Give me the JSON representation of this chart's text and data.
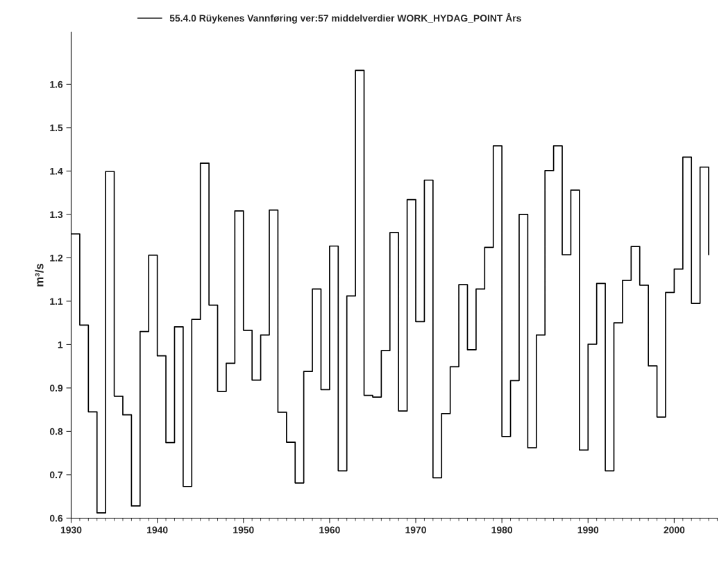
{
  "chart_data": {
    "type": "step",
    "ylabel": "m³/s",
    "legend": "top",
    "x": [
      1930,
      1931,
      1932,
      1933,
      1934,
      1935,
      1936,
      1937,
      1938,
      1939,
      1940,
      1941,
      1942,
      1943,
      1944,
      1945,
      1946,
      1947,
      1948,
      1949,
      1950,
      1951,
      1952,
      1953,
      1954,
      1955,
      1956,
      1957,
      1958,
      1959,
      1960,
      1961,
      1962,
      1963,
      1964,
      1965,
      1966,
      1967,
      1968,
      1969,
      1970,
      1971,
      1972,
      1973,
      1974,
      1975,
      1976,
      1977,
      1978,
      1979,
      1980,
      1981,
      1982,
      1983,
      1984,
      1985,
      1986,
      1987,
      1988,
      1989,
      1990,
      1991,
      1992,
      1993,
      1994,
      1995,
      1996,
      1997,
      1998,
      1999,
      2000,
      2001,
      2002,
      2003,
      2004
    ],
    "series": [
      {
        "name": "55.4.0 Rüykenes Vannføring ver:57 middelverdier WORK_HYDAG_POINT Års",
        "color": "#000000",
        "values": [
          1.255,
          1.045,
          0.845,
          0.612,
          1.399,
          0.881,
          0.838,
          0.628,
          1.03,
          1.206,
          0.974,
          0.774,
          1.041,
          0.673,
          1.058,
          1.418,
          1.091,
          0.892,
          0.957,
          1.308,
          1.033,
          0.918,
          1.022,
          1.31,
          0.844,
          0.775,
          0.681,
          0.938,
          1.128,
          0.896,
          1.227,
          0.709,
          1.112,
          1.632,
          0.883,
          0.879,
          0.986,
          1.258,
          0.847,
          1.334,
          1.053,
          1.379,
          0.693,
          0.841,
          0.949,
          1.138,
          0.988,
          1.128,
          1.224,
          1.458,
          0.788,
          0.917,
          1.3,
          0.762,
          1.022,
          1.401,
          1.458,
          1.207,
          1.356,
          0.757,
          1.001,
          1.141,
          0.709,
          1.05,
          1.148,
          1.226,
          1.137,
          0.951,
          0.833,
          1.12,
          1.174,
          1.432,
          1.095,
          1.409,
          1.207
        ]
      }
    ],
    "xlim": [
      1930,
      2005
    ],
    "xticks": [
      1930,
      1940,
      1950,
      1960,
      1970,
      1980,
      1990,
      2000
    ],
    "ylim": [
      0.6,
      1.72
    ],
    "yticks": [
      0.6,
      0.7,
      0.8,
      0.9,
      1,
      1.1,
      1.2,
      1.3,
      1.4,
      1.5,
      1.6
    ],
    "grid": false
  }
}
